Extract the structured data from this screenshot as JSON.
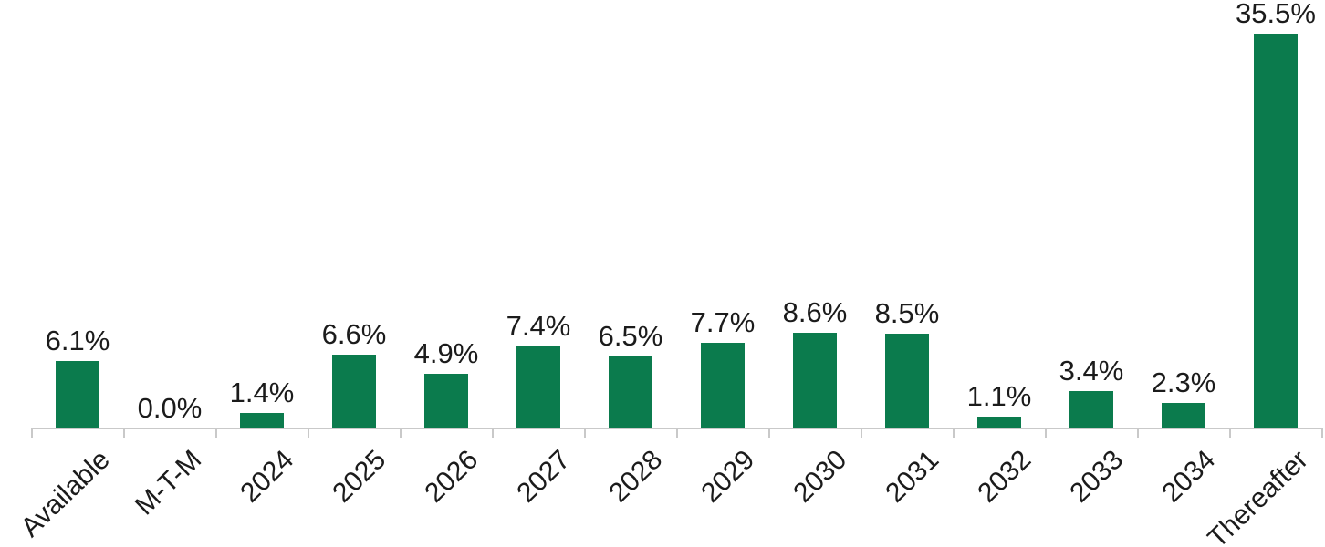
{
  "chart_data": {
    "type": "bar",
    "title": "",
    "xlabel": "",
    "ylabel": "",
    "categories": [
      "Available",
      "M-T-M",
      "2024",
      "2025",
      "2026",
      "2027",
      "2028",
      "2029",
      "2030",
      "2031",
      "2032",
      "2033",
      "2034",
      "Thereafter"
    ],
    "values": [
      6.1,
      0.0,
      1.4,
      6.6,
      4.9,
      7.4,
      6.5,
      7.7,
      8.6,
      8.5,
      1.1,
      3.4,
      2.3,
      35.5
    ],
    "value_labels": [
      "6.1%",
      "0.0%",
      "1.4%",
      "6.6%",
      "4.9%",
      "7.4%",
      "6.5%",
      "7.7%",
      "8.6%",
      "8.5%",
      "1.1%",
      "3.4%",
      "2.3%",
      "35.5%"
    ],
    "ylim": [
      0,
      36
    ],
    "gridlines": false,
    "legend": false,
    "y_axis_visible": false,
    "data_labels_visible": true,
    "x_label_rotation_deg": 45,
    "bar_color": "#0b7b4d",
    "axis_color": "#c9c9c9",
    "label_text_color": "#1b1b1b",
    "background_color": "#ffffff"
  }
}
